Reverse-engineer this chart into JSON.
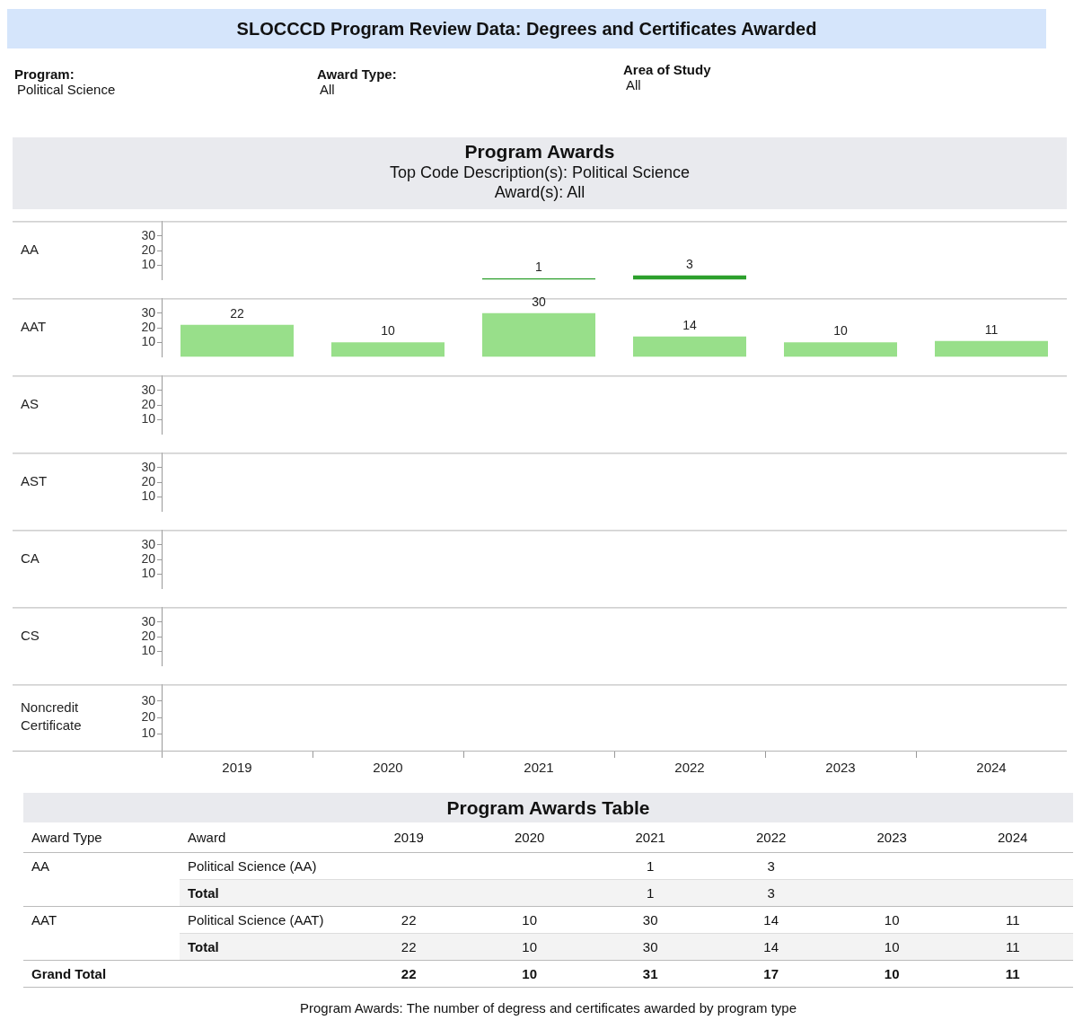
{
  "chart_data": [
    {
      "type": "bar",
      "title": "Program Awards",
      "subtitle": "Top Code Description(s): Political Science\nAward(s): All",
      "annotations": [
        "SLOCCCD Program Review Data: Degrees and Certificates Awarded",
        "Program:",
        "Political Science",
        "Award Type:",
        "All",
        "Area of Study",
        "All"
      ],
      "ylabel": "AA",
      "categories": [
        "2019",
        "2020",
        "2021",
        "2022",
        "2023",
        "2024"
      ],
      "values": [
        null,
        null,
        1,
        3,
        null,
        null
      ],
      "color": "#2ca02c",
      "ylim": [
        0,
        40
      ],
      "yticks": [
        10,
        20,
        30
      ],
      "data_labels": true,
      "tick_labels": "y"
    },
    {
      "type": "bar",
      "ylabel": "AAT",
      "categories": [
        "2019",
        "2020",
        "2021",
        "2022",
        "2023",
        "2024"
      ],
      "values": [
        22,
        10,
        30,
        14,
        10,
        11
      ],
      "color": "#98df8a",
      "ylim": [
        0,
        40
      ],
      "yticks": [
        10,
        20,
        30
      ],
      "data_labels": true,
      "tick_labels": "y"
    },
    {
      "type": "bar",
      "ylabel": "AS",
      "categories": [
        "2019",
        "2020",
        "2021",
        "2022",
        "2023",
        "2024"
      ],
      "values": [
        null,
        null,
        null,
        null,
        null,
        null
      ],
      "ylim": [
        0,
        40
      ],
      "yticks": [
        10,
        20,
        30
      ],
      "tick_labels": "y"
    },
    {
      "type": "bar",
      "ylabel": "AST",
      "categories": [
        "2019",
        "2020",
        "2021",
        "2022",
        "2023",
        "2024"
      ],
      "values": [
        null,
        null,
        null,
        null,
        null,
        null
      ],
      "ylim": [
        0,
        40
      ],
      "yticks": [
        10,
        20,
        30
      ],
      "tick_labels": "y"
    },
    {
      "type": "bar",
      "ylabel": "CA",
      "categories": [
        "2019",
        "2020",
        "2021",
        "2022",
        "2023",
        "2024"
      ],
      "values": [
        null,
        null,
        null,
        null,
        null,
        null
      ],
      "ylim": [
        0,
        40
      ],
      "yticks": [
        10,
        20,
        30
      ],
      "tick_labels": "y"
    },
    {
      "type": "bar",
      "ylabel": "CS",
      "categories": [
        "2019",
        "2020",
        "2021",
        "2022",
        "2023",
        "2024"
      ],
      "values": [
        null,
        null,
        null,
        null,
        null,
        null
      ],
      "ylim": [
        0,
        40
      ],
      "yticks": [
        10,
        20,
        30
      ],
      "tick_labels": "y"
    },
    {
      "type": "bar",
      "ylabel": "Noncredit Certificate",
      "categories": [
        "2019",
        "2020",
        "2021",
        "2022",
        "2023",
        "2024"
      ],
      "values": [
        null,
        null,
        null,
        null,
        null,
        null
      ],
      "ylim": [
        0,
        40
      ],
      "yticks": [
        10,
        20,
        30
      ]
    },
    {
      "type": "heatmap",
      "title": "Program Awards Table",
      "data_labels": true,
      "y2label": "Award Type",
      "ylabel": "Award",
      "categories": [
        "2019",
        "2020",
        "2021",
        "2022",
        "2023",
        "2024"
      ],
      "y2_categories": [
        "AA",
        null,
        "AAT",
        null,
        "Grand Total"
      ],
      "y_categories": [
        "Political Science (AA)",
        "Total",
        "Political Science (AAT)",
        "Total",
        null
      ],
      "cells": [
        [
          null,
          null,
          1,
          3,
          null,
          null
        ],
        [
          null,
          null,
          1,
          3,
          null,
          null
        ],
        [
          22,
          10,
          30,
          14,
          10,
          11
        ],
        [
          22,
          10,
          30,
          14,
          10,
          11
        ],
        [
          22,
          10,
          31,
          17,
          10,
          11
        ]
      ],
      "annotations": [
        "Program Awards: The number of degress and certificates awarded by program type"
      ]
    }
  ]
}
